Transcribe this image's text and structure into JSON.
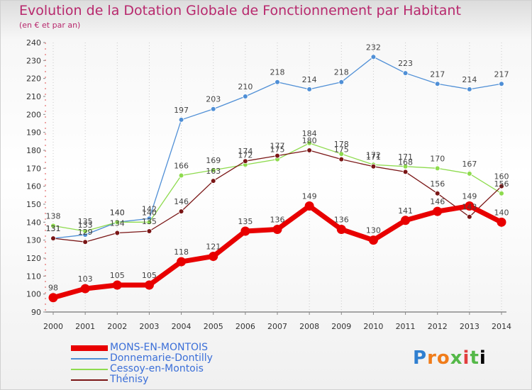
{
  "title": "Evolution de la Dotation Globale de Fonctionnement par Habitant",
  "subtitle": "(en € et par an)",
  "logo": "Proxiti",
  "chart_data": {
    "type": "line",
    "title": "Evolution de la Dotation Globale de Fonctionnement par Habitant",
    "ylabel": "(en € et par an)",
    "xlabel": "",
    "ylim": [
      90,
      240
    ],
    "yticks": [
      90,
      100,
      110,
      120,
      130,
      140,
      150,
      160,
      170,
      180,
      190,
      200,
      210,
      220,
      230,
      240
    ],
    "categories": [
      "2000",
      "2001",
      "2002",
      "2003",
      "2004",
      "2005",
      "2006",
      "2007",
      "2008",
      "2009",
      "2010",
      "2011",
      "2012",
      "2013",
      "2014"
    ],
    "grid": "vertical dotted",
    "legend": "bottom-left",
    "series": [
      {
        "name": "MONS-EN-MONTOIS",
        "color": "#e80000",
        "values": [
          98,
          103,
          105,
          105,
          118,
          121,
          135,
          136,
          149,
          136,
          130,
          141,
          146,
          149,
          140
        ]
      },
      {
        "name": "Donnemarie-Dontilly",
        "color": "#4f8fd6",
        "values": [
          131,
          133,
          140,
          142,
          197,
          203,
          210,
          218,
          214,
          218,
          232,
          223,
          217,
          214,
          217
        ]
      },
      {
        "name": "Cessoy-en-Montois",
        "color": "#8edb4e",
        "values": [
          138,
          135,
          140,
          140,
          166,
          169,
          172,
          175,
          184,
          178,
          172,
          171,
          170,
          167,
          156
        ]
      },
      {
        "name": "Thénisy",
        "color": "#7a1616",
        "values": [
          131,
          129,
          134,
          135,
          146,
          163,
          174,
          177,
          180,
          175,
          171,
          168,
          156,
          143,
          160
        ]
      }
    ],
    "data_labels": [
      [
        "98",
        "103",
        "105",
        "105",
        "118",
        "121",
        "135",
        "136",
        "149",
        "136",
        "130",
        "141",
        "146",
        "149",
        "140"
      ],
      [
        "131",
        "133",
        "140",
        "142",
        "197",
        "203",
        "210",
        "218",
        "214",
        "218",
        "232",
        "223",
        "217",
        "214",
        "217"
      ],
      [
        "138",
        "135",
        "140",
        "140",
        "166",
        "169",
        "172",
        "175",
        "184",
        "178",
        "172",
        "171",
        "170",
        "167",
        "156"
      ],
      [
        "131",
        "129",
        "134",
        "135",
        "146",
        "163",
        "174",
        "177",
        "180",
        "175",
        "171",
        "168",
        "156",
        "143",
        "160"
      ]
    ]
  }
}
